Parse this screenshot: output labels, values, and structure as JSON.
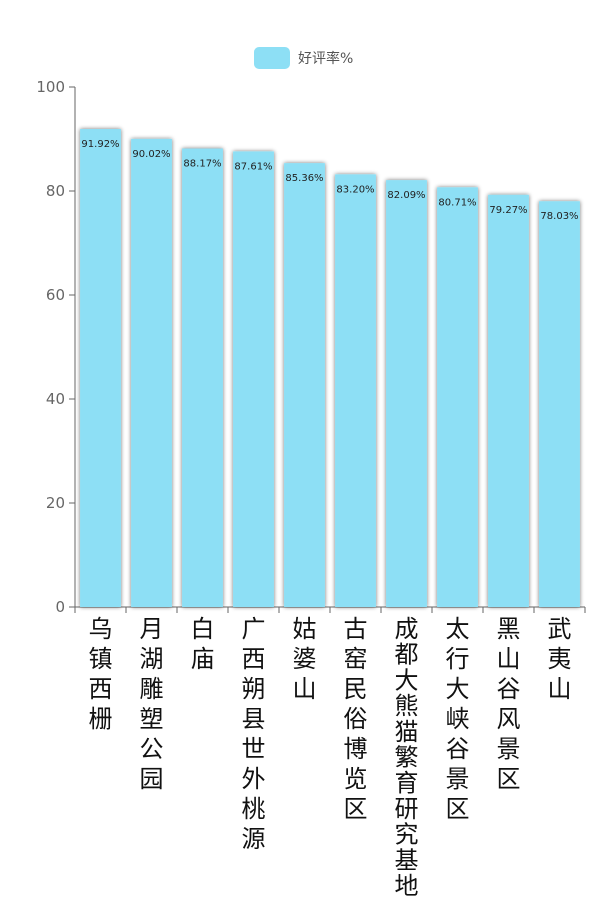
{
  "chart_data": {
    "type": "bar",
    "title": "",
    "xlabel": "",
    "ylabel": "",
    "categories": [
      "乌镇西栅",
      "月湖雕塑公园",
      "白庙",
      "广西朔县世外桃源",
      "姑婆山",
      "古窑民俗博览区",
      "成都大熊猫繁育研究基地",
      "太行大峡谷景区",
      "黑山谷风景区",
      "武夷山"
    ],
    "series": [
      {
        "name": "好评率%",
        "values": [
          91.92,
          90.02,
          88.17,
          87.61,
          85.36,
          83.2,
          82.09,
          80.71,
          79.27,
          78.03
        ],
        "labels": [
          "91.92%",
          "90.02%",
          "88.17%",
          "87.61%",
          "85.36%",
          "83.20%",
          "82.09%",
          "80.71%",
          "79.27%",
          "78.03%"
        ],
        "color": "#8ddff5"
      }
    ],
    "ylim": [
      0,
      100
    ],
    "yticks": [
      0,
      20,
      40,
      60,
      80,
      100
    ],
    "ytick_labels": [
      "0",
      "20",
      "40",
      "60",
      "80",
      "100"
    ],
    "grid": false,
    "legend_position": "top-center"
  },
  "colors": {
    "bar": "#8ddff5",
    "axis": "#666666"
  }
}
